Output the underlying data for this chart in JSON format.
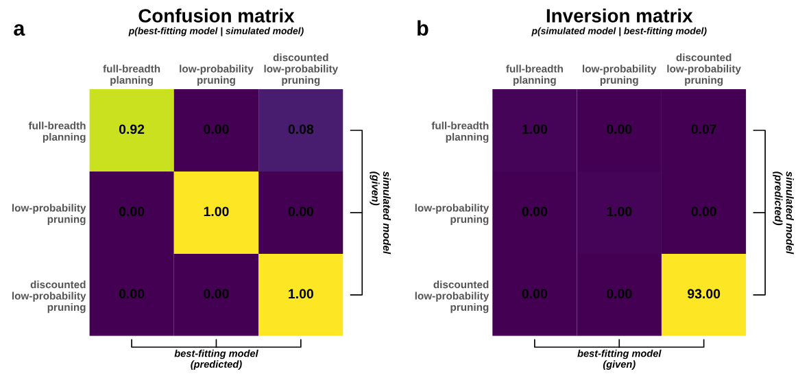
{
  "chart_data": [
    {
      "type": "heatmap",
      "title": "Confusion matrix",
      "subtitle": "p(best-fitting model | simulated model)",
      "annotations": [
        "a"
      ],
      "categories": [
        "full-breadth\nplanning",
        "low-probability\npruning",
        "discounted\nlow-probability\npruning"
      ],
      "y_categories": [
        "full-breadth\nplanning",
        "low-probability\npruning",
        "discounted\nlow-probability\npruning"
      ],
      "xlabel": "best-fitting model\n(predicted)",
      "y2label": "simulated model\n(given)",
      "cells": [
        [
          0.92,
          0.0,
          0.08
        ],
        [
          0.0,
          1.0,
          0.0
        ],
        [
          0.0,
          0.0,
          1.0
        ]
      ],
      "cell_labels": [
        [
          "0.92",
          "0.00",
          "0.08"
        ],
        [
          "0.00",
          "1.00",
          "0.00"
        ],
        [
          "0.00",
          "0.00",
          "1.00"
        ]
      ]
    },
    {
      "type": "heatmap",
      "title": "Inversion matrix",
      "subtitle": "p(simulated model | best-fitting model)",
      "annotations": [
        "b"
      ],
      "categories": [
        "full-breadth\nplanning",
        "low-probability\npruning",
        "discounted\nlow-probability\npruning"
      ],
      "y_categories": [
        "full-breadth\nplanning",
        "low-probability\npruning",
        "discounted\nlow-probability\npruning"
      ],
      "xlabel": "best-fitting model\n(given)",
      "y2label": "simulated model\n(predicted)",
      "cells": [
        [
          1.0,
          0.0,
          0.07
        ],
        [
          0.0,
          1.0,
          0.0
        ],
        [
          0.0,
          0.0,
          93.0
        ]
      ],
      "cell_labels": [
        [
          "1.00",
          "0.00",
          "0.07"
        ],
        [
          "0.00",
          "1.00",
          "0.00"
        ],
        [
          "0.00",
          "0.00",
          "93.00"
        ]
      ]
    }
  ]
}
